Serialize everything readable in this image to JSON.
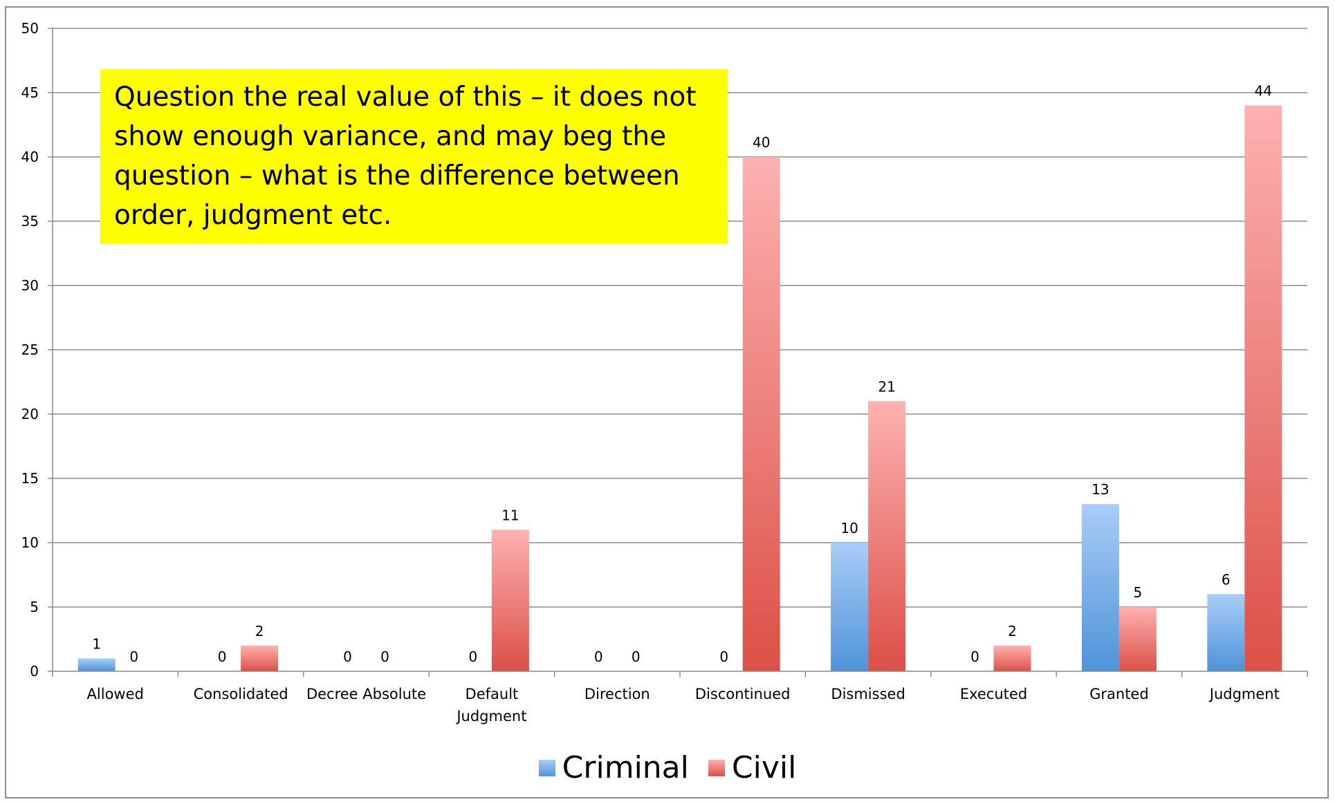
{
  "callout": {
    "text": "Question the real value of this – it does not show enough variance, and may beg the question – what is the difference between order, judgment etc."
  },
  "colors": {
    "criminal_light": "#a9cdf7",
    "criminal_dark": "#4f93d8",
    "civil_light": "#fdb1b1",
    "civil_dark": "#dc5047",
    "gridline": "#8a8a8a",
    "callout_background": "#ffff00"
  },
  "chart_data": {
    "type": "bar",
    "categories": [
      "Allowed",
      "Consolidated",
      "Decree Absolute",
      "Default Judgment",
      "Direction",
      "Discontinued",
      "Dismissed",
      "Executed",
      "Granted",
      "Judgment"
    ],
    "category_lines": [
      [
        "Allowed"
      ],
      [
        "Consolidated"
      ],
      [
        "Decree Absolute"
      ],
      [
        "Default",
        "Judgment"
      ],
      [
        "Direction"
      ],
      [
        "Discontinued"
      ],
      [
        "Dismissed"
      ],
      [
        "Executed"
      ],
      [
        "Granted"
      ],
      [
        "Judgment"
      ]
    ],
    "series": [
      {
        "name": "Criminal",
        "values": [
          1,
          0,
          0,
          0,
          0,
          0,
          10,
          0,
          13,
          6
        ]
      },
      {
        "name": "Civil",
        "values": [
          0,
          2,
          0,
          11,
          0,
          40,
          21,
          2,
          5,
          44
        ]
      }
    ],
    "data_labels": {
      "Criminal": [
        "1",
        "0",
        "0",
        "0",
        "0",
        "0",
        "10",
        "0",
        "13",
        "6"
      ],
      "Civil": [
        "0",
        "2",
        "0",
        "11",
        "0",
        "40",
        "21",
        "2",
        "5",
        "44"
      ]
    },
    "ylim": [
      0,
      50
    ],
    "yticks": [
      0,
      5,
      10,
      15,
      20,
      25,
      30,
      35,
      40,
      45,
      50
    ],
    "ytick_labels": [
      "0",
      "5",
      "10",
      "15",
      "20",
      "25",
      "30",
      "35",
      "40",
      "45",
      "50"
    ],
    "grid": true,
    "legend_position": "bottom",
    "xlabel": "",
    "ylabel": "",
    "title": ""
  }
}
